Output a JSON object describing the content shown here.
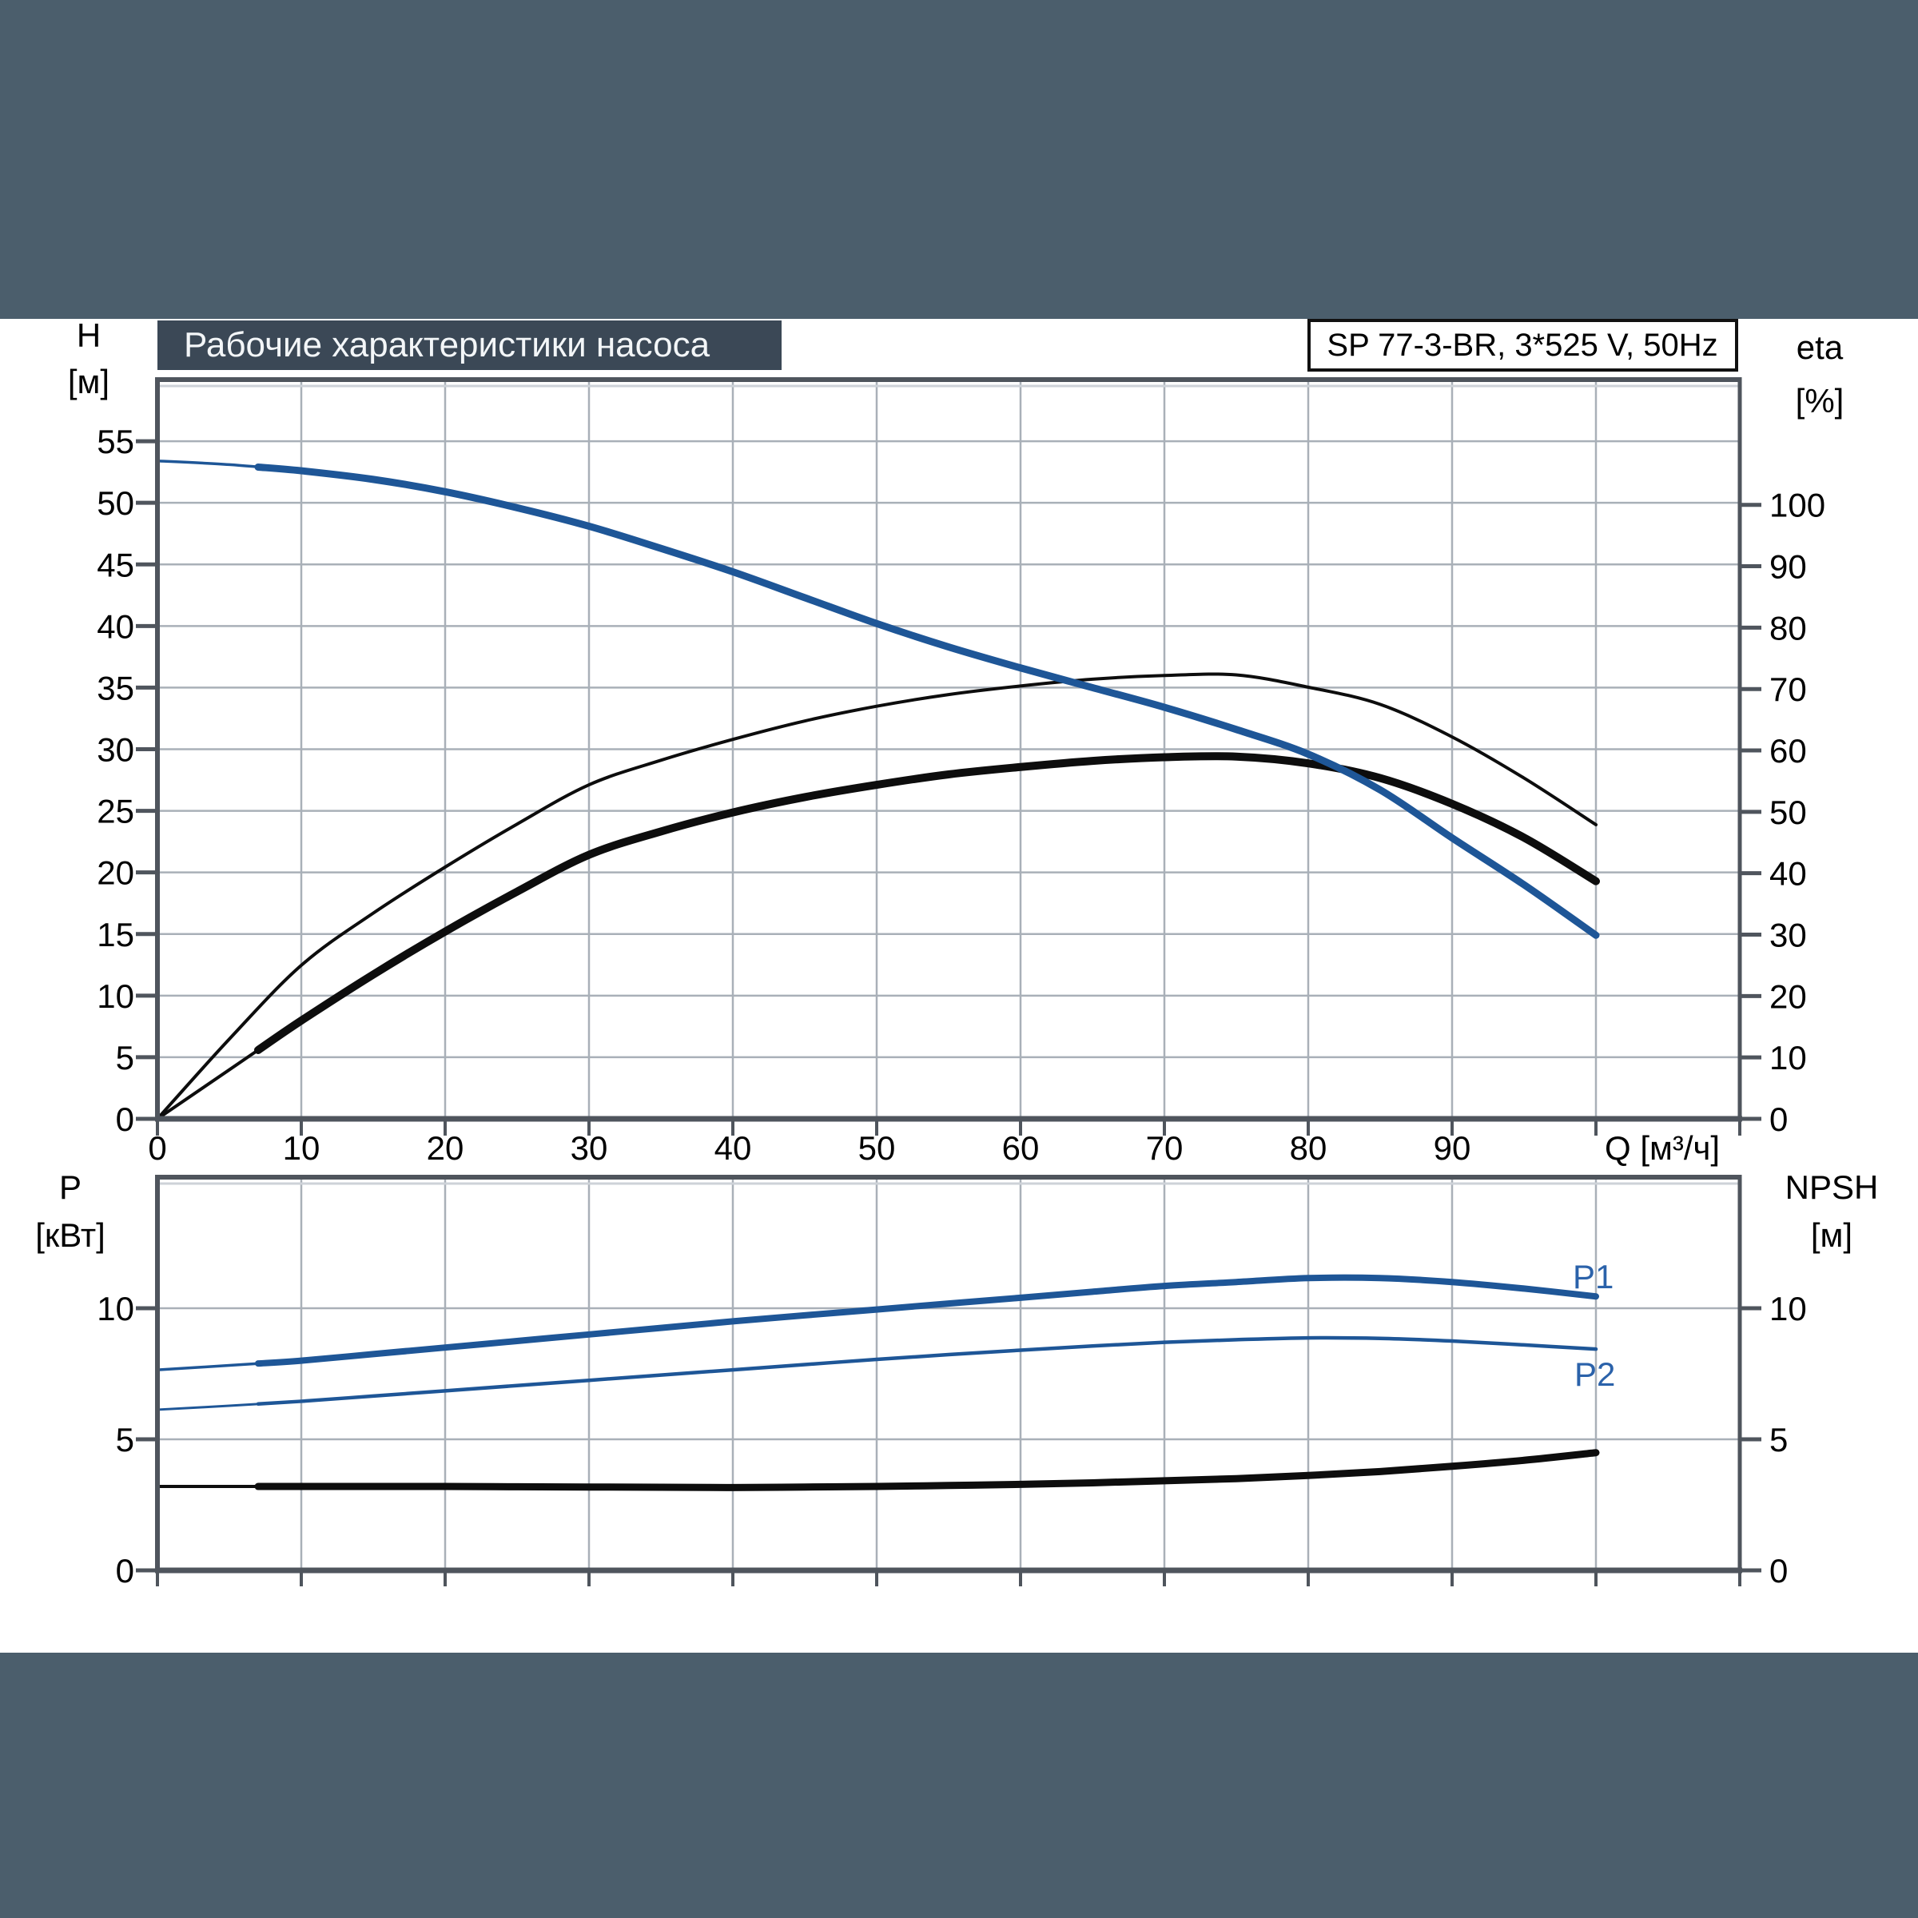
{
  "colors": {
    "band": "#4b5e6c",
    "title_bg": "#3b4856",
    "title_fg": "#f3f6f8",
    "axis": "#4f555d",
    "grid": "#a9b0b8",
    "grid_light": "#cdd2d8",
    "curve_blue": "#1e5697",
    "label_blue": "#2b62aa",
    "curve_black": "#0d0d0d"
  },
  "title_box": {
    "label": "Рабочие характеристики насоса"
  },
  "type_box": {
    "label": "SP 77-3-BR, 3*525 V, 50Hz"
  },
  "labels": {
    "h_name": "H",
    "h_unit": "[м]",
    "eta_name": "eta",
    "eta_unit": "[%]",
    "q_label": "Q [м³/ч]",
    "p_name": "P",
    "p_unit": "[кВт]",
    "npsh_name": "NPSH",
    "npsh_unit": "[м]",
    "p1": "P1",
    "p2": "P2"
  },
  "chart_data": [
    {
      "type": "line",
      "title": "Рабочие характеристики насоса",
      "pump_type": "SP 77-3-BR, 3*525 V, 50Hz",
      "xlabel": "Q [м³/ч]",
      "ylabel_left": "H [м]",
      "ylabel_right": "eta [%]",
      "xlim": [
        0,
        110
      ],
      "ylim_left": [
        0,
        60
      ],
      "ylim_right": [
        0,
        120.4
      ],
      "grid": true,
      "x_tick_labels": [
        "0",
        "10",
        "20",
        "30",
        "40",
        "50",
        "60",
        "70",
        "80",
        "90"
      ],
      "x_ticks": [
        0,
        10,
        20,
        30,
        40,
        50,
        60,
        70,
        80,
        90,
        100,
        110
      ],
      "left_ticks": [
        0,
        5,
        10,
        15,
        20,
        25,
        30,
        35,
        40,
        45,
        50,
        55
      ],
      "right_ticks": [
        0,
        10,
        20,
        30,
        40,
        50,
        60,
        70,
        80,
        90,
        100
      ],
      "q": [
        0,
        5,
        10,
        15,
        20,
        25,
        30,
        35,
        40,
        45,
        50,
        55,
        60,
        65,
        70,
        75,
        80,
        85,
        90,
        95,
        100
      ],
      "series": [
        {
          "name": "H-curve",
          "axis": "H",
          "color": "blue",
          "values": [
            53.4,
            53.1,
            52.6,
            51.9,
            50.9,
            49.6,
            48.1,
            46.3,
            44.4,
            42.3,
            40.2,
            38.3,
            36.6,
            35.0,
            33.4,
            31.6,
            29.6,
            26.7,
            22.8,
            19.0,
            14.9
          ]
        },
        {
          "name": "eta-pump",
          "axis": "eta",
          "color": "black",
          "values": [
            0,
            13,
            25,
            33.5,
            41,
            48,
            54.4,
            58.4,
            61.8,
            64.8,
            67.2,
            69.1,
            70.5,
            71.6,
            72.2,
            72.3,
            70.3,
            67.5,
            62.2,
            55.5,
            47.9
          ]
        },
        {
          "name": "eta-total",
          "axis": "eta",
          "color": "black",
          "values": [
            0,
            8,
            16,
            23.5,
            30.5,
            37,
            43,
            46.8,
            49.9,
            52.4,
            54.4,
            56.1,
            57.3,
            58.3,
            58.9,
            59.0,
            57.9,
            55.5,
            51.3,
            45.8,
            38.7
          ]
        }
      ]
    },
    {
      "type": "line",
      "xlabel": "Q [м³/ч]",
      "ylabel_left": "P [кВт]",
      "ylabel_right": "NPSH [м]",
      "xlim": [
        0,
        110
      ],
      "ylim": [
        0,
        15
      ],
      "grid": true,
      "x_ticks": [
        0,
        10,
        20,
        30,
        40,
        50,
        60,
        70,
        80,
        90,
        100,
        110
      ],
      "left_ticks": [
        0,
        5,
        10
      ],
      "right_ticks": [
        0,
        5,
        10
      ],
      "q": [
        0,
        5,
        10,
        15,
        20,
        25,
        30,
        35,
        40,
        45,
        50,
        55,
        60,
        65,
        70,
        75,
        80,
        85,
        90,
        95,
        100
      ],
      "series": [
        {
          "name": "P1",
          "axis": "P",
          "color": "blue",
          "values": [
            7.65,
            7.82,
            8.0,
            8.25,
            8.5,
            8.75,
            9.0,
            9.25,
            9.5,
            9.73,
            9.95,
            10.18,
            10.4,
            10.63,
            10.85,
            11.0,
            11.15,
            11.15,
            11.0,
            10.75,
            10.45
          ]
        },
        {
          "name": "P2",
          "axis": "P",
          "color": "blue",
          "values": [
            6.13,
            6.28,
            6.45,
            6.65,
            6.85,
            7.05,
            7.25,
            7.45,
            7.65,
            7.85,
            8.05,
            8.23,
            8.4,
            8.56,
            8.7,
            8.8,
            8.87,
            8.85,
            8.75,
            8.6,
            8.44
          ]
        },
        {
          "name": "NPSH",
          "axis": "NPSH",
          "color": "black",
          "values": [
            3.2,
            3.2,
            3.2,
            3.2,
            3.2,
            3.19,
            3.18,
            3.17,
            3.16,
            3.18,
            3.2,
            3.24,
            3.28,
            3.34,
            3.42,
            3.5,
            3.62,
            3.77,
            3.97,
            4.2,
            4.49
          ]
        }
      ]
    }
  ]
}
